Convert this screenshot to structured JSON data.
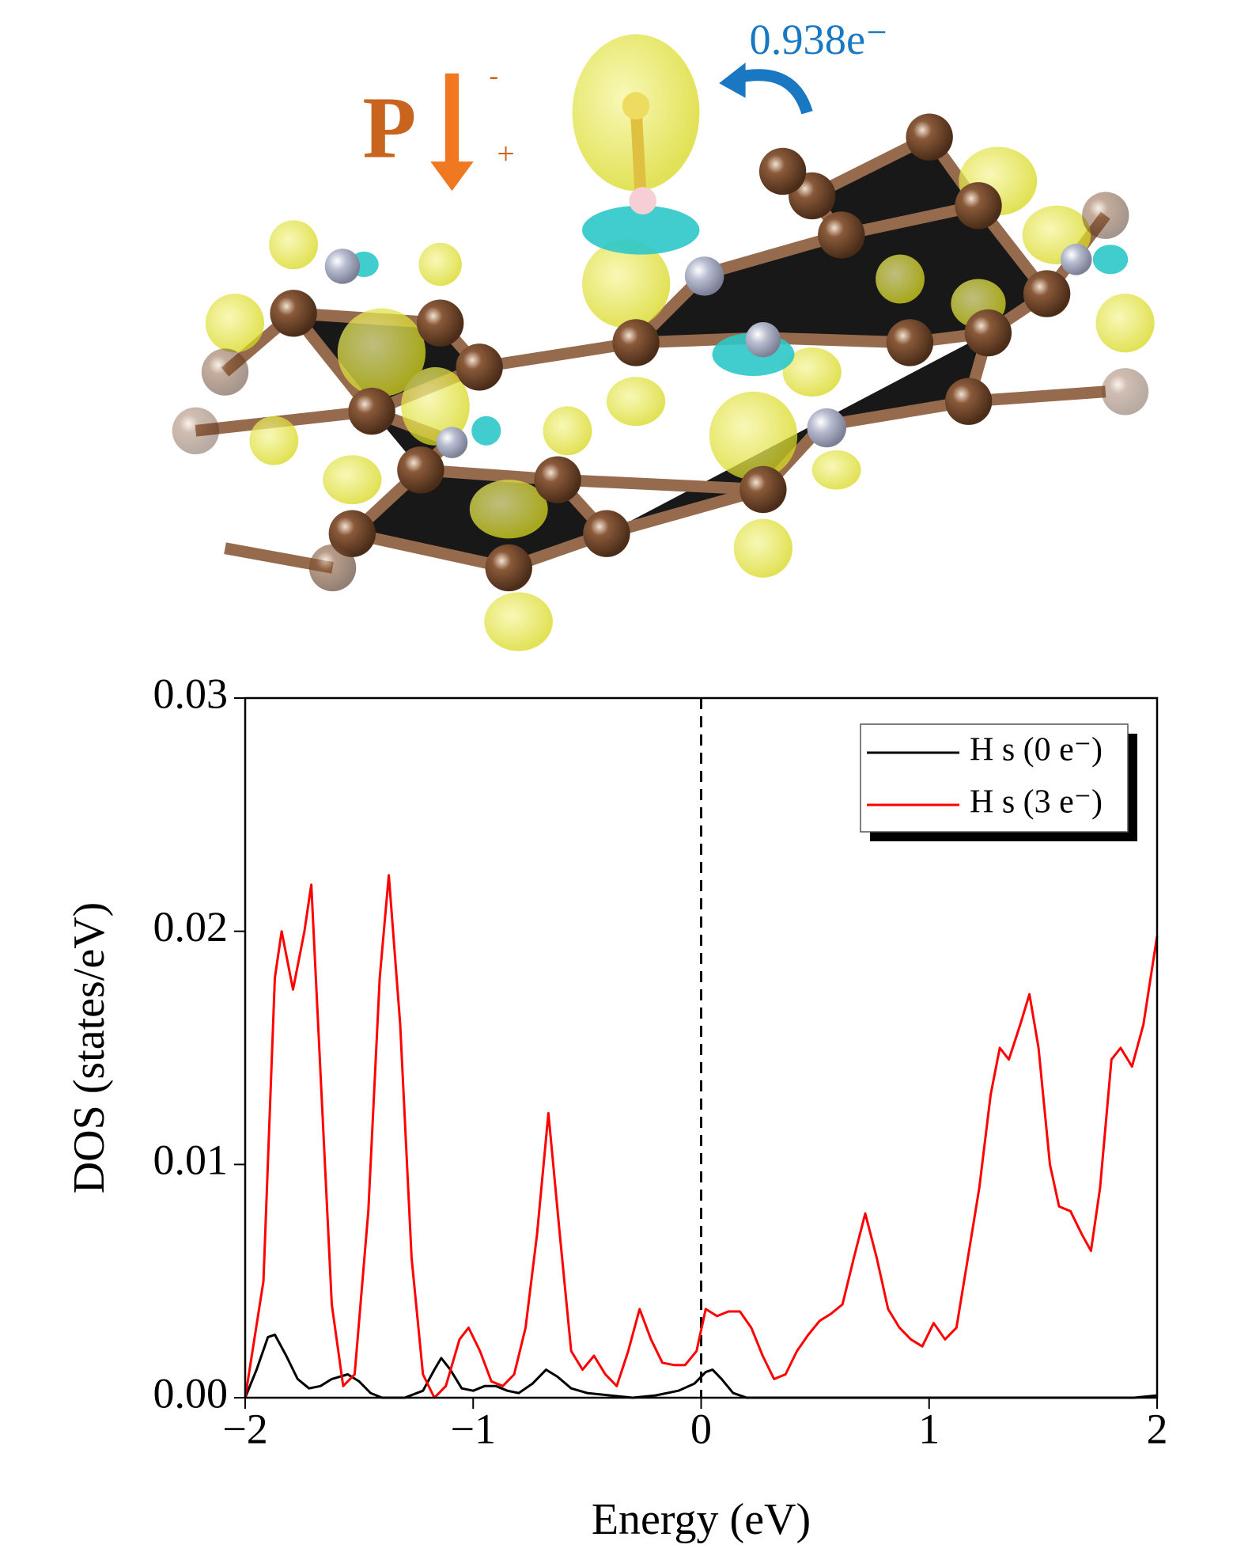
{
  "illustration": {
    "charge_label": "0.938e⁻",
    "polarization_label": "P",
    "minus_label": "-",
    "plus_label": "+"
  },
  "chart_data": {
    "type": "line",
    "xlabel": "Energy (eV)",
    "ylabel": "DOS (states/eV)",
    "xlim": [
      -2,
      2
    ],
    "ylim": [
      0,
      0.03
    ],
    "xticks": [
      {
        "value": -2,
        "label": "−2"
      },
      {
        "value": -1,
        "label": "−1"
      },
      0,
      1,
      2
    ],
    "yticks": [
      {
        "value": 0,
        "label": "0.00"
      },
      0.01,
      0.02,
      0.03
    ],
    "vline": 0,
    "legend": "upper right",
    "series": [
      {
        "name": "H s (0 e⁻)",
        "color": "#000000",
        "x": [
          -2,
          -1.95,
          -1.9,
          -1.87,
          -1.82,
          -1.77,
          -1.72,
          -1.67,
          -1.62,
          -1.55,
          -1.5,
          -1.45,
          -1.4,
          -1.3,
          -1.22,
          -1.17,
          -1.14,
          -1.1,
          -1.05,
          -1.0,
          -0.95,
          -0.9,
          -0.85,
          -0.8,
          -0.74,
          -0.68,
          -0.63,
          -0.57,
          -0.5,
          -0.4,
          -0.3,
          -0.2,
          -0.1,
          -0.03,
          0.02,
          0.05,
          0.09,
          0.14,
          0.2,
          1.9,
          2
        ],
        "values": [
          0,
          0.0012,
          0.0026,
          0.0027,
          0.0018,
          0.0008,
          0.0004,
          0.0005,
          0.0008,
          0.001,
          0.0007,
          0.0002,
          0,
          0,
          0.0003,
          0.0012,
          0.0017,
          0.0012,
          0.0004,
          0.0003,
          0.0005,
          0.0005,
          0.0003,
          0.0002,
          0.0006,
          0.0012,
          0.0009,
          0.0004,
          0.0002,
          0.0001,
          0,
          0.0001,
          0.0003,
          0.0006,
          0.0011,
          0.0012,
          0.0008,
          0.0002,
          0,
          0,
          0.0001
        ]
      },
      {
        "name": "H s (3 e⁻)",
        "color": "#ff0000",
        "x": [
          -2,
          -1.92,
          -1.87,
          -1.84,
          -1.79,
          -1.74,
          -1.71,
          -1.66,
          -1.62,
          -1.57,
          -1.52,
          -1.46,
          -1.41,
          -1.37,
          -1.32,
          -1.27,
          -1.22,
          -1.17,
          -1.12,
          -1.06,
          -1.02,
          -0.97,
          -0.92,
          -0.87,
          -0.82,
          -0.77,
          -0.72,
          -0.67,
          -0.62,
          -0.57,
          -0.52,
          -0.47,
          -0.42,
          -0.37,
          -0.32,
          -0.27,
          -0.22,
          -0.17,
          -0.12,
          -0.07,
          -0.02,
          0.02,
          0.07,
          0.12,
          0.17,
          0.22,
          0.27,
          0.32,
          0.37,
          0.42,
          0.47,
          0.52,
          0.57,
          0.62,
          0.67,
          0.72,
          0.77,
          0.82,
          0.87,
          0.92,
          0.97,
          1.02,
          1.07,
          1.12,
          1.17,
          1.22,
          1.27,
          1.31,
          1.35,
          1.4,
          1.44,
          1.48,
          1.53,
          1.57,
          1.62,
          1.67,
          1.71,
          1.75,
          1.8,
          1.84,
          1.89,
          1.94,
          2
        ],
        "values": [
          0,
          0.005,
          0.018,
          0.02,
          0.0175,
          0.02,
          0.022,
          0.012,
          0.004,
          0.0005,
          0.001,
          0.008,
          0.018,
          0.0224,
          0.016,
          0.006,
          0.001,
          0,
          0.0005,
          0.0025,
          0.003,
          0.002,
          0.0007,
          0.0005,
          0.001,
          0.003,
          0.007,
          0.0122,
          0.007,
          0.002,
          0.0012,
          0.0018,
          0.001,
          0.0005,
          0.002,
          0.0038,
          0.0025,
          0.0015,
          0.0014,
          0.0014,
          0.002,
          0.0038,
          0.0035,
          0.0037,
          0.0037,
          0.003,
          0.0018,
          0.0008,
          0.001,
          0.002,
          0.0027,
          0.0033,
          0.0036,
          0.004,
          0.006,
          0.0079,
          0.006,
          0.0038,
          0.003,
          0.0025,
          0.0022,
          0.0032,
          0.0025,
          0.003,
          0.006,
          0.009,
          0.013,
          0.015,
          0.0145,
          0.016,
          0.0173,
          0.015,
          0.01,
          0.0082,
          0.008,
          0.007,
          0.0063,
          0.009,
          0.0145,
          0.015,
          0.0142,
          0.016,
          0.0198
        ]
      }
    ]
  }
}
